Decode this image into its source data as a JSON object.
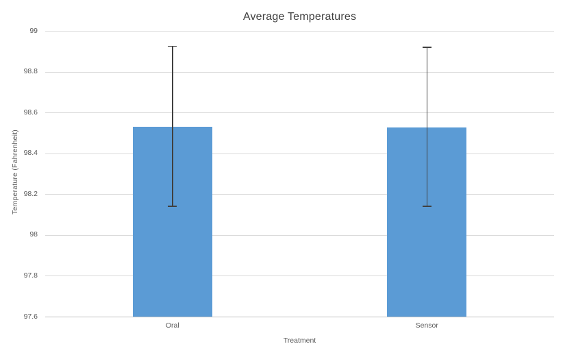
{
  "chart_data": {
    "type": "bar",
    "title": "Average Temperatures",
    "xlabel": "Treatment",
    "ylabel": "Temperature (Fahrenheit)",
    "categories": [
      "Oral",
      "Sensor"
    ],
    "values": [
      98.53,
      98.525
    ],
    "error_bars": [
      {
        "low": 98.14,
        "high": 98.925
      },
      {
        "low": 98.14,
        "high": 98.92
      }
    ],
    "ylim": [
      97.6,
      99
    ],
    "ytick_step": 0.2,
    "ytick_labels": [
      "99",
      "98.8",
      "98.6",
      "98.4",
      "98.2",
      "98",
      "97.8",
      "97.6"
    ],
    "grid": true,
    "legend": false,
    "colors": {
      "bar": "#5B9BD5",
      "error_bar": "#404040",
      "gridline": "#D9D9D9",
      "axis_line": "#BFBFBF",
      "title_text": "#404040",
      "label_text": "#595959",
      "background": "#FFFFFF"
    }
  }
}
